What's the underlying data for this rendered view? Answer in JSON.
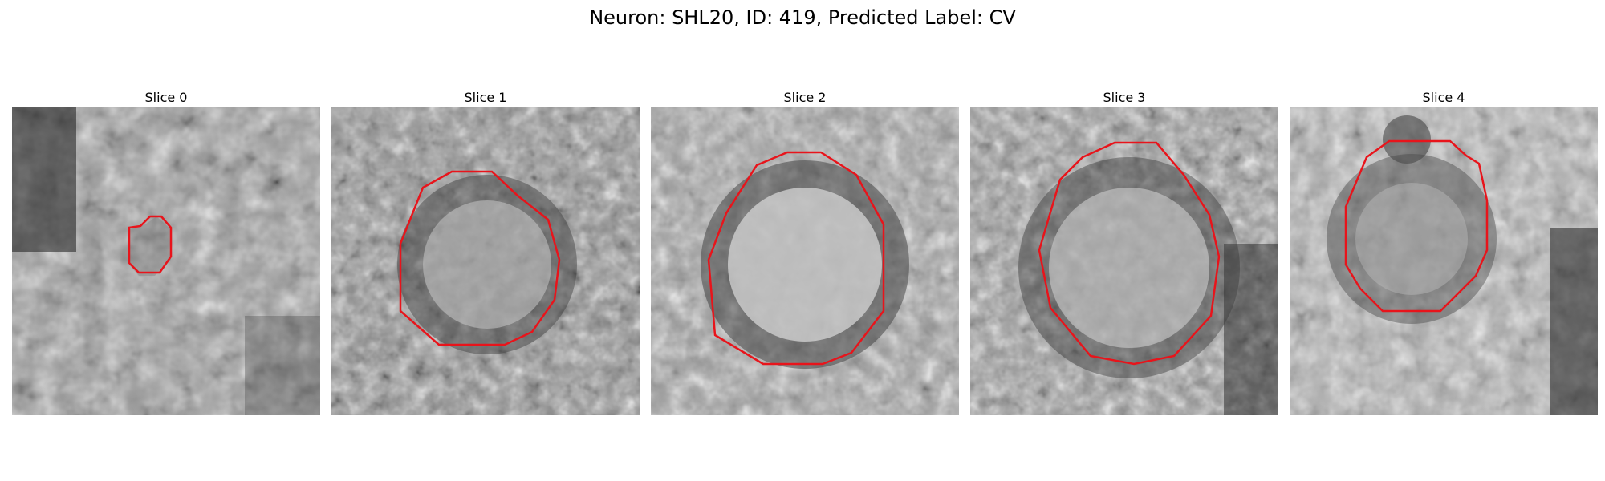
{
  "figure": {
    "title": "Neuron: SHL20, ID: 419, Predicted Label: CV",
    "panels": [
      {
        "title": "Slice 0"
      },
      {
        "title": "Slice 1"
      },
      {
        "title": "Slice 2"
      },
      {
        "title": "Slice 3"
      },
      {
        "title": "Slice 4"
      }
    ],
    "contour_color": "#e8141b",
    "colormap": "grayscale"
  }
}
